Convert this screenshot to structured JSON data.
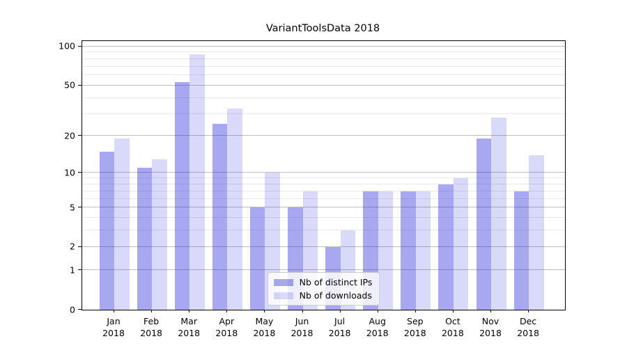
{
  "title": "VariantToolsData 2018",
  "legend": {
    "items": [
      {
        "label": "Nb of distinct IPs",
        "color": "rgba(30,30,220,0.39)"
      },
      {
        "label": "Nb of downloads",
        "color": "rgba(30,30,220,0.17)"
      }
    ]
  },
  "colors": {
    "ips_bar": "rgba(30,30,220,0.39)",
    "downloads_bar": "rgba(30,30,220,0.17)",
    "grid_major": "#bdbdbd",
    "grid_minor": "#e7e7e7",
    "axis": "#000000"
  },
  "chart_data": {
    "type": "bar",
    "title": "VariantToolsData 2018",
    "categories": [
      "Jan 2018",
      "Feb 2018",
      "Mar 2018",
      "Apr 2018",
      "May 2018",
      "Jun 2018",
      "Jul 2018",
      "Aug 2018",
      "Sep 2018",
      "Oct 2018",
      "Nov 2018",
      "Dec 2018"
    ],
    "series": [
      {
        "name": "Nb of distinct IPs",
        "values": [
          15,
          11,
          53,
          25,
          5,
          5,
          2,
          7,
          7,
          8,
          19,
          7
        ]
      },
      {
        "name": "Nb of downloads",
        "values": [
          19,
          13,
          87,
          33,
          10,
          7,
          3,
          7,
          7,
          9,
          28,
          14
        ]
      }
    ],
    "xlabel": "",
    "ylabel": "",
    "yscale": "log1p",
    "ylim": [
      0,
      110
    ],
    "y_major_ticks": [
      0,
      1,
      2,
      5,
      10,
      20,
      50,
      100
    ],
    "y_minor_ticks": [
      3,
      4,
      6,
      7,
      8,
      9,
      30,
      40,
      60,
      70,
      80,
      90
    ],
    "grid": true,
    "legend_position": "lower center"
  }
}
